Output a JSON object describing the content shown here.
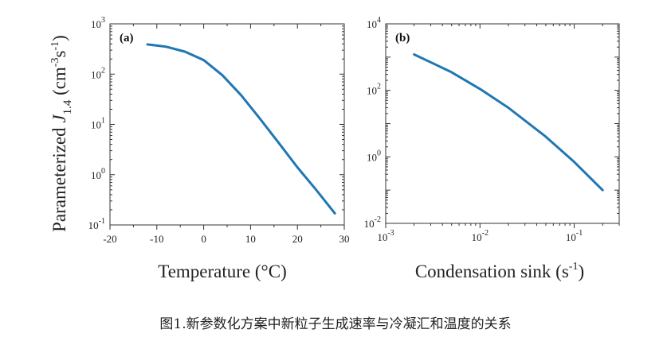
{
  "caption": "图1.新参数化方案中新粒子生成速率与冷凝汇和温度的关系",
  "shared_ylabel": {
    "main": "Parameterized ",
    "symbol": "J",
    "subscript": "1.4",
    "units_open": " (cm",
    "units_exp1": "-3",
    "units_mid": "s",
    "units_exp2": "-1",
    "units_close": ")"
  },
  "chart_data": [
    {
      "type": "line",
      "panel_label": "(a)",
      "xlabel": "Temperature (°C)",
      "xscale": "linear",
      "xlim": [
        -20,
        30
      ],
      "xticks": [
        -20,
        -10,
        0,
        10,
        20,
        30
      ],
      "xtick_labels": [
        "-20",
        "-10",
        "0",
        "10",
        "20",
        "30"
      ],
      "yscale": "log",
      "ylim": [
        0.1,
        1000
      ],
      "yticks": [
        {
          "base": "10",
          "exp": "-1"
        },
        {
          "base": "10",
          "exp": "0"
        },
        {
          "base": "10",
          "exp": "1"
        },
        {
          "base": "10",
          "exp": "2"
        },
        {
          "base": "10",
          "exp": "3"
        }
      ],
      "grid": false,
      "color": "#1f77b4",
      "series": [
        {
          "x": [
            -12,
            -8,
            -4,
            0,
            4,
            8,
            12,
            16,
            20,
            24,
            28
          ],
          "y": [
            390,
            350,
            280,
            190,
            95,
            38,
            13,
            4.3,
            1.4,
            0.5,
            0.17
          ]
        }
      ]
    },
    {
      "type": "line",
      "panel_label": "(b)",
      "xlabel": "Condensation sink (s",
      "xlabel_exp": "-1",
      "xlabel_close": ")",
      "xscale": "log",
      "xlim": [
        0.001,
        0.3
      ],
      "xticks": [
        {
          "base": "10",
          "exp": "-3"
        },
        {
          "base": "10",
          "exp": "-2"
        },
        {
          "base": "10",
          "exp": "-1"
        }
      ],
      "yscale": "log",
      "ylim": [
        0.01,
        10000
      ],
      "yticks": [
        {
          "base": "10",
          "exp": "-2"
        },
        {
          "base": "10",
          "exp": "0"
        },
        {
          "base": "10",
          "exp": "2"
        },
        {
          "base": "10",
          "exp": "4"
        }
      ],
      "grid": false,
      "color": "#1f77b4",
      "series": [
        {
          "x": [
            0.002,
            0.003,
            0.005,
            0.01,
            0.02,
            0.05,
            0.1,
            0.2
          ],
          "y": [
            1200,
            700,
            350,
            110,
            30,
            4,
            0.7,
            0.1
          ]
        }
      ]
    }
  ]
}
